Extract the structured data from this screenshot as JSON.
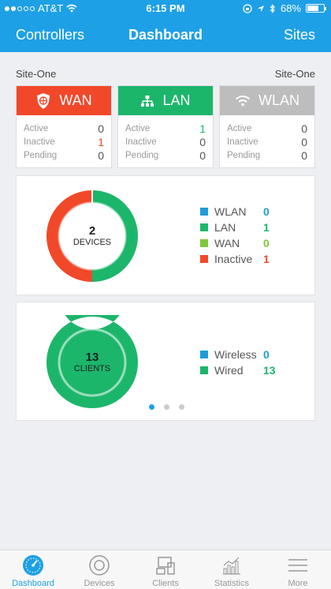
{
  "status_bar": {
    "carrier": "AT&T",
    "time": "6:15 PM",
    "battery": "68%",
    "battery_level": 0.68
  },
  "nav": {
    "left": "Controllers",
    "title": "Dashboard",
    "right": "Sites"
  },
  "site": {
    "left": "Site-One",
    "right": "Site-One"
  },
  "cards": [
    {
      "title": "WAN",
      "color": "#f2482a",
      "icon": "shield-icon",
      "rows": [
        {
          "label": "Active",
          "value": "0",
          "color": "#555"
        },
        {
          "label": "Inactive",
          "value": "1",
          "color": "#f2482a"
        },
        {
          "label": "Pending",
          "value": "0",
          "color": "#555"
        }
      ]
    },
    {
      "title": "LAN",
      "color": "#1cb66b",
      "icon": "network-icon",
      "rows": [
        {
          "label": "Active",
          "value": "1",
          "color": "#1cb66b"
        },
        {
          "label": "Inactive",
          "value": "0",
          "color": "#555"
        },
        {
          "label": "Pending",
          "value": "0",
          "color": "#555"
        }
      ]
    },
    {
      "title": "WLAN",
      "color": "#bdbdbd",
      "icon": "wifi-icon",
      "rows": [
        {
          "label": "Active",
          "value": "0",
          "color": "#555"
        },
        {
          "label": "Inactive",
          "value": "0",
          "color": "#555"
        },
        {
          "label": "Pending",
          "value": "0",
          "color": "#555"
        }
      ]
    }
  ],
  "devices_chart": {
    "center_number": "2",
    "center_label": "DEVICES",
    "legend": [
      {
        "label": "WLAN",
        "value": "0",
        "color": "#1e9cd7",
        "value_color": "#1e9cd7"
      },
      {
        "label": "LAN",
        "value": "1",
        "color": "#1cb66b",
        "value_color": "#1cb66b"
      },
      {
        "label": "WAN",
        "value": "0",
        "color": "#7ec83a",
        "value_color": "#7ec83a"
      },
      {
        "label": "Inactive",
        "value": "1",
        "color": "#f2482a",
        "value_color": "#f2482a"
      }
    ]
  },
  "clients_chart": {
    "center_number": "13",
    "center_label": "CLIENTS",
    "legend": [
      {
        "label": "Wireless",
        "value": "0",
        "color": "#1e9cd7",
        "value_color": "#1e9cd7"
      },
      {
        "label": "Wired",
        "value": "13",
        "color": "#1cb66b",
        "value_color": "#1cb66b"
      }
    ]
  },
  "chart_data": [
    {
      "type": "pie",
      "categories": [
        "WLAN",
        "LAN",
        "WAN",
        "Inactive"
      ],
      "values": [
        0,
        1,
        0,
        1
      ]
    },
    {
      "type": "pie",
      "categories": [
        "Wireless",
        "Wired"
      ],
      "values": [
        0,
        13
      ]
    }
  ],
  "pager": {
    "pages": 3,
    "active": 0
  },
  "tabs": [
    {
      "label": "Dashboard",
      "icon": "dashboard-icon",
      "active": true
    },
    {
      "label": "Devices",
      "icon": "devices-icon",
      "active": false
    },
    {
      "label": "Clients",
      "icon": "clients-icon",
      "active": false
    },
    {
      "label": "Statistics",
      "icon": "statistics-icon",
      "active": false
    },
    {
      "label": "More",
      "icon": "menu-icon",
      "active": false
    }
  ]
}
